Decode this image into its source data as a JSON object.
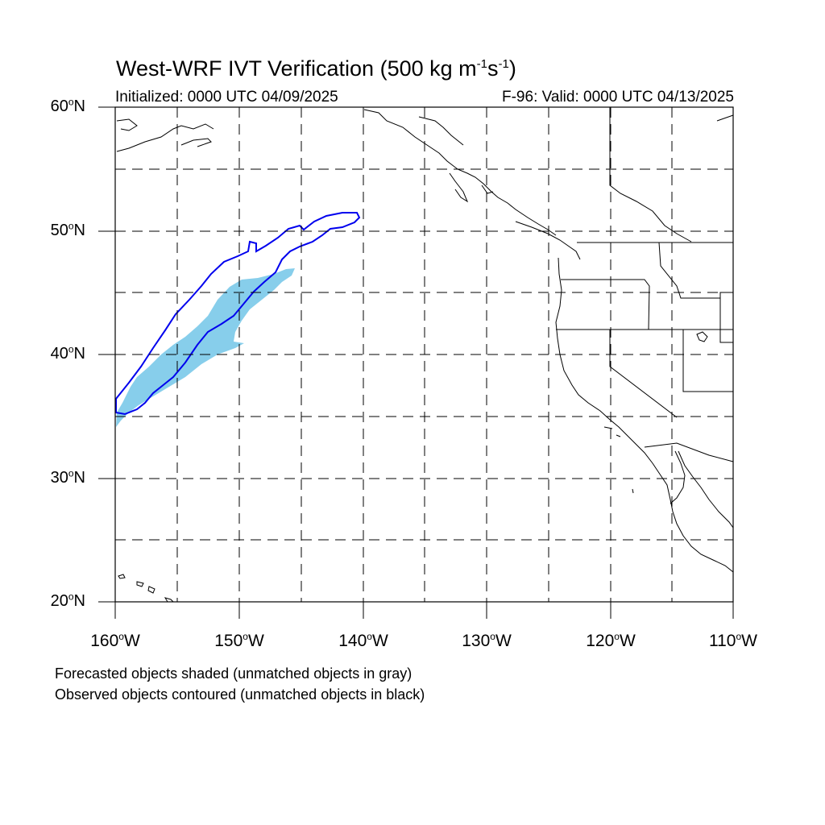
{
  "title": {
    "prefix": "West-WRF IVT Verification (500 kg m",
    "exp1": "-1",
    "middle": "s",
    "exp2": "-1",
    "suffix": ")"
  },
  "initialized": "Initialized: 0000 UTC 04/09/2025",
  "valid": "F-96: Valid: 0000 UTC 04/13/2025",
  "latitude_labels": [
    {
      "value": "60",
      "sup": "o",
      "hemi": "N"
    },
    {
      "value": "50",
      "sup": "o",
      "hemi": "N"
    },
    {
      "value": "40",
      "sup": "o",
      "hemi": "N"
    },
    {
      "value": "30",
      "sup": "o",
      "hemi": "N"
    },
    {
      "value": "20",
      "sup": "o",
      "hemi": "N"
    }
  ],
  "longitude_labels": [
    {
      "value": "160",
      "sup": "o",
      "hemi": "W"
    },
    {
      "value": "150",
      "sup": "o",
      "hemi": "W"
    },
    {
      "value": "140",
      "sup": "o",
      "hemi": "W"
    },
    {
      "value": "130",
      "sup": "o",
      "hemi": "W"
    },
    {
      "value": "120",
      "sup": "o",
      "hemi": "W"
    },
    {
      "value": "110",
      "sup": "o",
      "hemi": "W"
    }
  ],
  "notes": {
    "forecast": "Forecasted objects shaded (unmatched objects in gray)",
    "observed": "Observed objects contoured (unmatched objects in black)"
  },
  "colors": {
    "forecast_fill": "#87ceeb",
    "observed_contour": "#0000ee",
    "coastline": "#000000",
    "grid": "#000000"
  }
}
